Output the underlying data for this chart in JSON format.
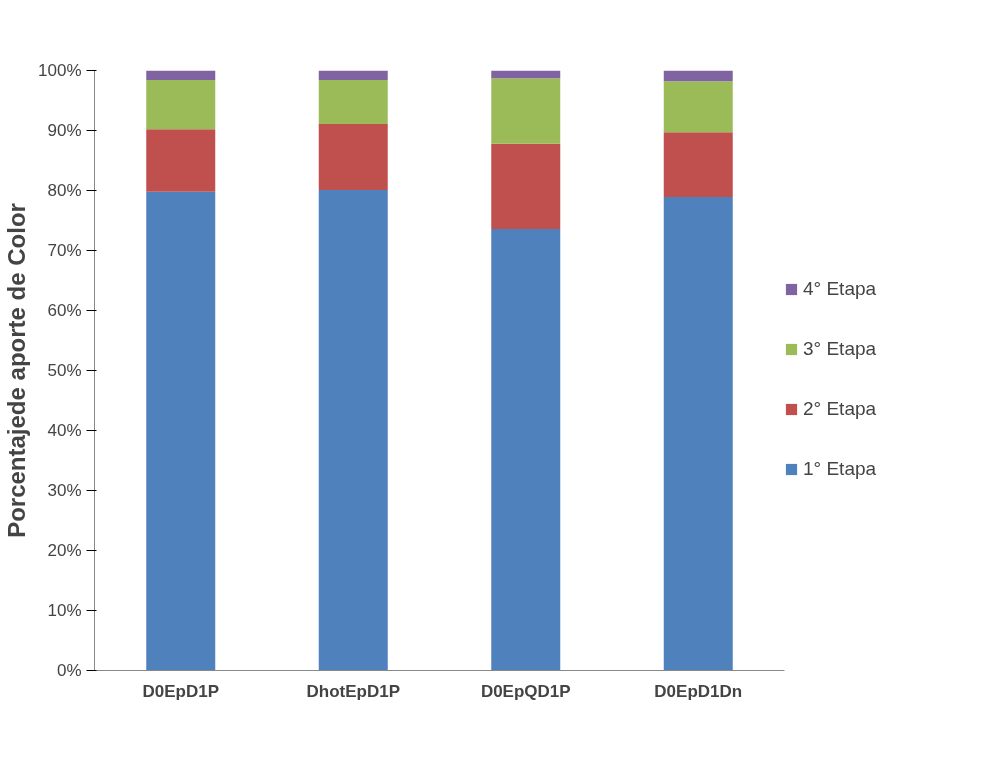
{
  "chart_data": {
    "type": "bar",
    "stacked": true,
    "ylabel": "Porcentajede aporte de Color",
    "categories": [
      "D0EpD1P",
      "DhotEpD1P",
      "D0EpQD1P",
      "D0EpD1Dn"
    ],
    "series": [
      {
        "name": "1° Etapa",
        "color": "#4f81bd",
        "values": [
          79.8,
          80.1,
          73.6,
          78.9
        ]
      },
      {
        "name": "2° Etapa",
        "color": "#c0504d",
        "values": [
          10.4,
          11.0,
          14.2,
          10.8
        ]
      },
      {
        "name": "3° Etapa",
        "color": "#9bbb59",
        "values": [
          8.2,
          7.3,
          10.9,
          8.5
        ]
      },
      {
        "name": "4° Etapa",
        "color": "#8064a2",
        "values": [
          1.6,
          1.6,
          1.3,
          1.8
        ]
      }
    ],
    "ylim": [
      0,
      100
    ],
    "yticks": [
      {
        "value": 0,
        "label": "0%"
      },
      {
        "value": 10,
        "label": "10%"
      },
      {
        "value": 20,
        "label": "20%"
      },
      {
        "value": 30,
        "label": "30%"
      },
      {
        "value": 40,
        "label": "40%"
      },
      {
        "value": 50,
        "label": "50%"
      },
      {
        "value": 60,
        "label": "60%"
      },
      {
        "value": 70,
        "label": "70%"
      },
      {
        "value": 80,
        "label": "80%"
      },
      {
        "value": 90,
        "label": "90%"
      },
      {
        "value": 100,
        "label": "100%"
      }
    ],
    "grid": false,
    "legend": "right"
  }
}
